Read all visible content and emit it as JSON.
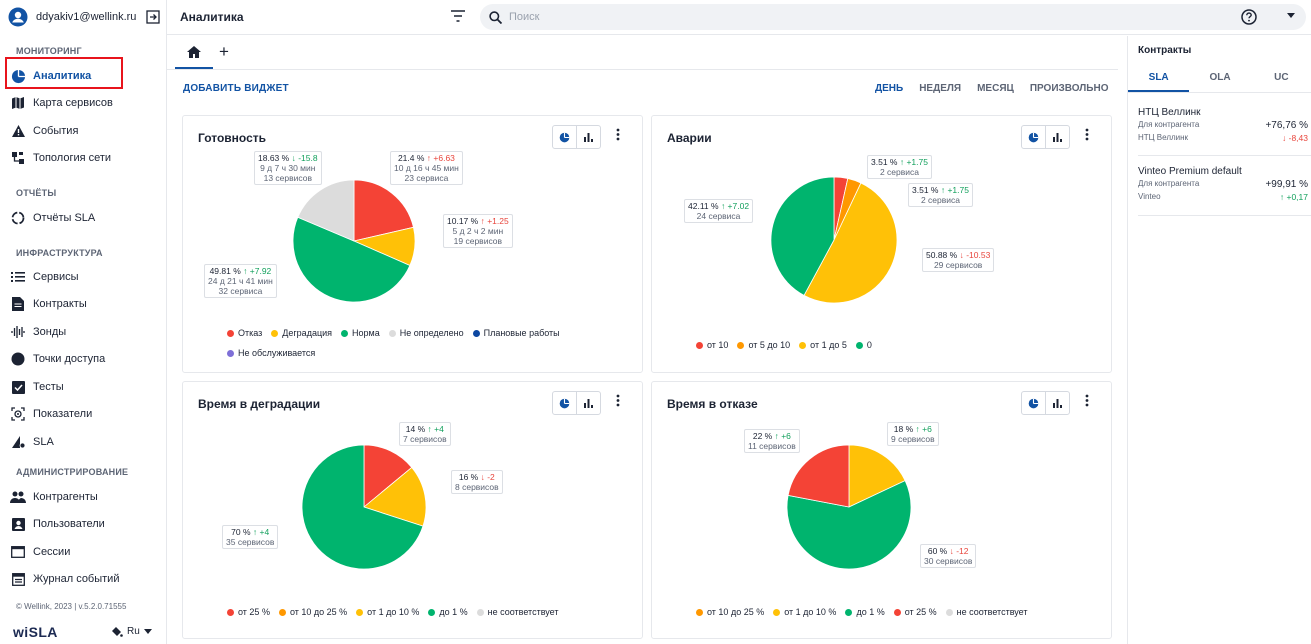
{
  "user": {
    "email": "ddyakiv1@wellink.ru"
  },
  "sidebar": {
    "sections": {
      "monitoring": "МОНИТОРИНГ",
      "reports": "ОТЧЁТЫ",
      "infra": "ИНФРАСТРУКТУРА",
      "admin": "АДМИНИСТРИРОВАНИЕ"
    },
    "items": {
      "analytics": "Аналитика",
      "service_map": "Карта сервисов",
      "events": "События",
      "topology": "Топология сети",
      "sla_reports": "Отчёты SLA",
      "services": "Сервисы",
      "contracts": "Контракты",
      "probes": "Зонды",
      "access_points": "Точки доступа",
      "tests": "Тесты",
      "metrics": "Показатели",
      "sla": "SLA",
      "counterparties": "Контрагенты",
      "users": "Пользователи",
      "sessions": "Сессии",
      "event_log": "Журнал событий"
    },
    "footer": "© Wellink, 2023 | v.5.2.0.71555",
    "logo": "wiSLA",
    "lang": "Ru"
  },
  "topbar": {
    "title": "Аналитика",
    "search_placeholder": "Поиск"
  },
  "toolbar": {
    "add_widget": "ДОБАВИТЬ ВИДЖЕТ",
    "periods": {
      "day": "ДЕНЬ",
      "week": "НЕДЕЛЯ",
      "month": "МЕСЯЦ",
      "custom": "ПРОИЗВОЛЬНО"
    }
  },
  "colors": {
    "red": "#f44336",
    "yellow": "#ffc107",
    "green": "#00b46e",
    "gray": "#dcdcdc",
    "orange": "#ff9800",
    "blue": "#0d47a1",
    "purple": "#7e6fd7",
    "accent": "#1253a4"
  },
  "widgets": {
    "readiness": {
      "title": "Готовность",
      "labels": {
        "gray": {
          "pct": "18.63 %",
          "delta": "↓ -15.8",
          "time": "9 д 7 ч 30 мин",
          "count": "13 сервисов"
        },
        "red": {
          "pct": "21.4 %",
          "delta": "↑ +6.63",
          "time": "10 д 16 ч 45 мин",
          "count": "23 сервиса"
        },
        "yellow": {
          "pct": "10.17 %",
          "delta": "↑ +1.25",
          "time": "5 д 2 ч 2 мин",
          "count": "19 сервисов"
        },
        "green": {
          "pct": "49.81 %",
          "delta": "↑ +7.92",
          "time": "24 д 21 ч 41 мин",
          "count": "32 сервиса"
        }
      },
      "legend": {
        "l1": "Отказ",
        "l2": "Деградация",
        "l3": "Норма",
        "l4": "Не определено",
        "l5": "Плановые работы",
        "l6": "Не обслуживается"
      }
    },
    "accidents": {
      "title": "Аварии",
      "labels": {
        "a": {
          "pct": "3.51 %",
          "delta": "↑ +1.75",
          "count": "2 сервиса"
        },
        "b": {
          "pct": "3.51 %",
          "delta": "↑ +1.75",
          "count": "2 сервиса"
        },
        "c": {
          "pct": "50.88 %",
          "delta": "↓ -10.53",
          "count": "29 сервисов"
        },
        "d": {
          "pct": "42.11 %",
          "delta": "↑ +7.02",
          "count": "24 сервиса"
        }
      },
      "legend": {
        "l1": "от 10",
        "l2": "от 5 до 10",
        "l3": "от 1 до 5",
        "l4": "0"
      }
    },
    "degradation": {
      "title": "Время в деградации",
      "labels": {
        "a": {
          "pct": "14 %",
          "delta": "↑ +4",
          "count": "7 сервисов"
        },
        "b": {
          "pct": "16 %",
          "delta": "↓ -2",
          "count": "8 сервисов"
        },
        "c": {
          "pct": "70 %",
          "delta": "↑ +4",
          "count": "35 сервисов"
        }
      },
      "legend": {
        "l1": "от 25 %",
        "l2": "от 10 до 25 %",
        "l3": "от 1 до 10 %",
        "l4": "до 1 %",
        "l5": "не соответствует"
      }
    },
    "failure": {
      "title": "Время в отказе",
      "labels": {
        "a": {
          "pct": "22 %",
          "delta": "↑ +6",
          "count": "11 сервисов"
        },
        "b": {
          "pct": "18 %",
          "delta": "↑ +6",
          "count": "9 сервисов"
        },
        "c": {
          "pct": "60 %",
          "delta": "↓ -12",
          "count": "30 сервисов"
        }
      },
      "legend": {
        "l1": "от 10 до 25 %",
        "l2": "от 1 до 10 %",
        "l3": "до 1 %",
        "l4": "от 25 %",
        "l5": "не соответствует"
      }
    }
  },
  "chart_data": [
    {
      "type": "pie",
      "title": "Готовность",
      "slices": [
        {
          "name": "Отказ",
          "value": 21.4,
          "color": "#f44336"
        },
        {
          "name": "Деградация",
          "value": 10.17,
          "color": "#ffc107"
        },
        {
          "name": "Норма",
          "value": 49.81,
          "color": "#00b46e"
        },
        {
          "name": "Не определено",
          "value": 18.63,
          "color": "#dcdcdc"
        }
      ]
    },
    {
      "type": "pie",
      "title": "Аварии",
      "slices": [
        {
          "name": "от 10",
          "value": 3.51,
          "color": "#f44336"
        },
        {
          "name": "от 5 до 10",
          "value": 3.51,
          "color": "#ff9800"
        },
        {
          "name": "от 1 до 5",
          "value": 50.88,
          "color": "#ffc107"
        },
        {
          "name": "0",
          "value": 42.11,
          "color": "#00b46e"
        }
      ]
    },
    {
      "type": "pie",
      "title": "Время в деградации",
      "slices": [
        {
          "name": "от 25 %",
          "value": 14,
          "color": "#f44336"
        },
        {
          "name": "от 1 до 10 %",
          "value": 16,
          "color": "#ffc107"
        },
        {
          "name": "до 1 %",
          "value": 70,
          "color": "#00b46e"
        }
      ]
    },
    {
      "type": "pie",
      "title": "Время в отказе",
      "slices": [
        {
          "name": "от 1 до 10 %",
          "value": 18,
          "color": "#ffc107"
        },
        {
          "name": "до 1 %",
          "value": 60,
          "color": "#00b46e"
        },
        {
          "name": "от 25 %",
          "value": 22,
          "color": "#f44336"
        }
      ]
    }
  ],
  "contracts": {
    "title": "Контракты",
    "tabs": {
      "sla": "SLA",
      "ola": "OLA",
      "uc": "UC"
    },
    "items": [
      {
        "name": "НТЦ Веллинк",
        "cp_label": "Для контрагента",
        "cp": "НТЦ Веллинк",
        "value": "+76,76 %",
        "delta": "↓ -8,43"
      },
      {
        "name": "Vinteo Premium default",
        "cp_label": "Для контрагента",
        "cp": "Vinteo",
        "value": "+99,91 %",
        "delta": "↑ +0,17"
      }
    ]
  }
}
